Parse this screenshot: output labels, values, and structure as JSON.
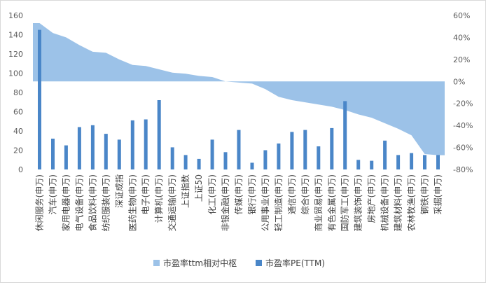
{
  "chart_data": {
    "type": "bar",
    "categories": [
      "休闲服务(申万)",
      "汽车(申万)",
      "家用电器(申万)",
      "电气设备(申万)",
      "食品饮料(申万)",
      "纺织服装(申万)",
      "深证成指",
      "医药生物(申万)",
      "电子(申万)",
      "计算机(申万)",
      "交通运输(申万)",
      "上证指数",
      "上证50",
      "化工(申万)",
      "非银金融(申万)",
      "传媒(申万)",
      "银行(申万)",
      "公用事业(申万)",
      "轻工制造(申万)",
      "通信(申万)",
      "综合(申万)",
      "商业贸易(申万)",
      "有色金属(申万)",
      "国防军工(申万)",
      "建筑装饰(申万)",
      "房地产(申万)",
      "机械设备(申万)",
      "建筑材料(申万)",
      "农林牧渔(申万)",
      "钢铁(申万)",
      "采掘(申万)"
    ],
    "series": [
      {
        "name": "市盈率PE(TTM)",
        "kind": "bar",
        "axis": "left",
        "color": "#4a86c8",
        "values": [
          145,
          32,
          25,
          44,
          46,
          37,
          31,
          51,
          52,
          72,
          23,
          15,
          11,
          31,
          18,
          41,
          7,
          20,
          27,
          39,
          41,
          24,
          43,
          71,
          10,
          9,
          30,
          15,
          17,
          15,
          15
        ]
      },
      {
        "name": "市盈率ttm相对中枢",
        "kind": "area",
        "axis": "right",
        "color": "#9cc2e8",
        "values": [
          0.53,
          0.44,
          0.4,
          0.33,
          0.27,
          0.26,
          0.2,
          0.15,
          0.14,
          0.11,
          0.08,
          0.07,
          0.05,
          0.04,
          0.0,
          -0.01,
          -0.02,
          -0.07,
          -0.14,
          -0.17,
          -0.19,
          -0.21,
          -0.23,
          -0.26,
          -0.3,
          -0.33,
          -0.38,
          -0.43,
          -0.49,
          -0.66,
          -0.67
        ]
      }
    ],
    "left_axis": {
      "min": 0,
      "max": 160,
      "step": 20,
      "ticks": [
        "0",
        "20",
        "40",
        "60",
        "80",
        "100",
        "120",
        "140",
        "160"
      ]
    },
    "right_axis": {
      "min": -0.8,
      "max": 0.6,
      "step": 0.2,
      "ticks": [
        "-80%",
        "-60%",
        "-40%",
        "-20%",
        "0%",
        "20%",
        "40%",
        "60%"
      ]
    },
    "legend_position": "bottom",
    "grid": false,
    "title": "",
    "xlabel": "",
    "ylabel": ""
  }
}
